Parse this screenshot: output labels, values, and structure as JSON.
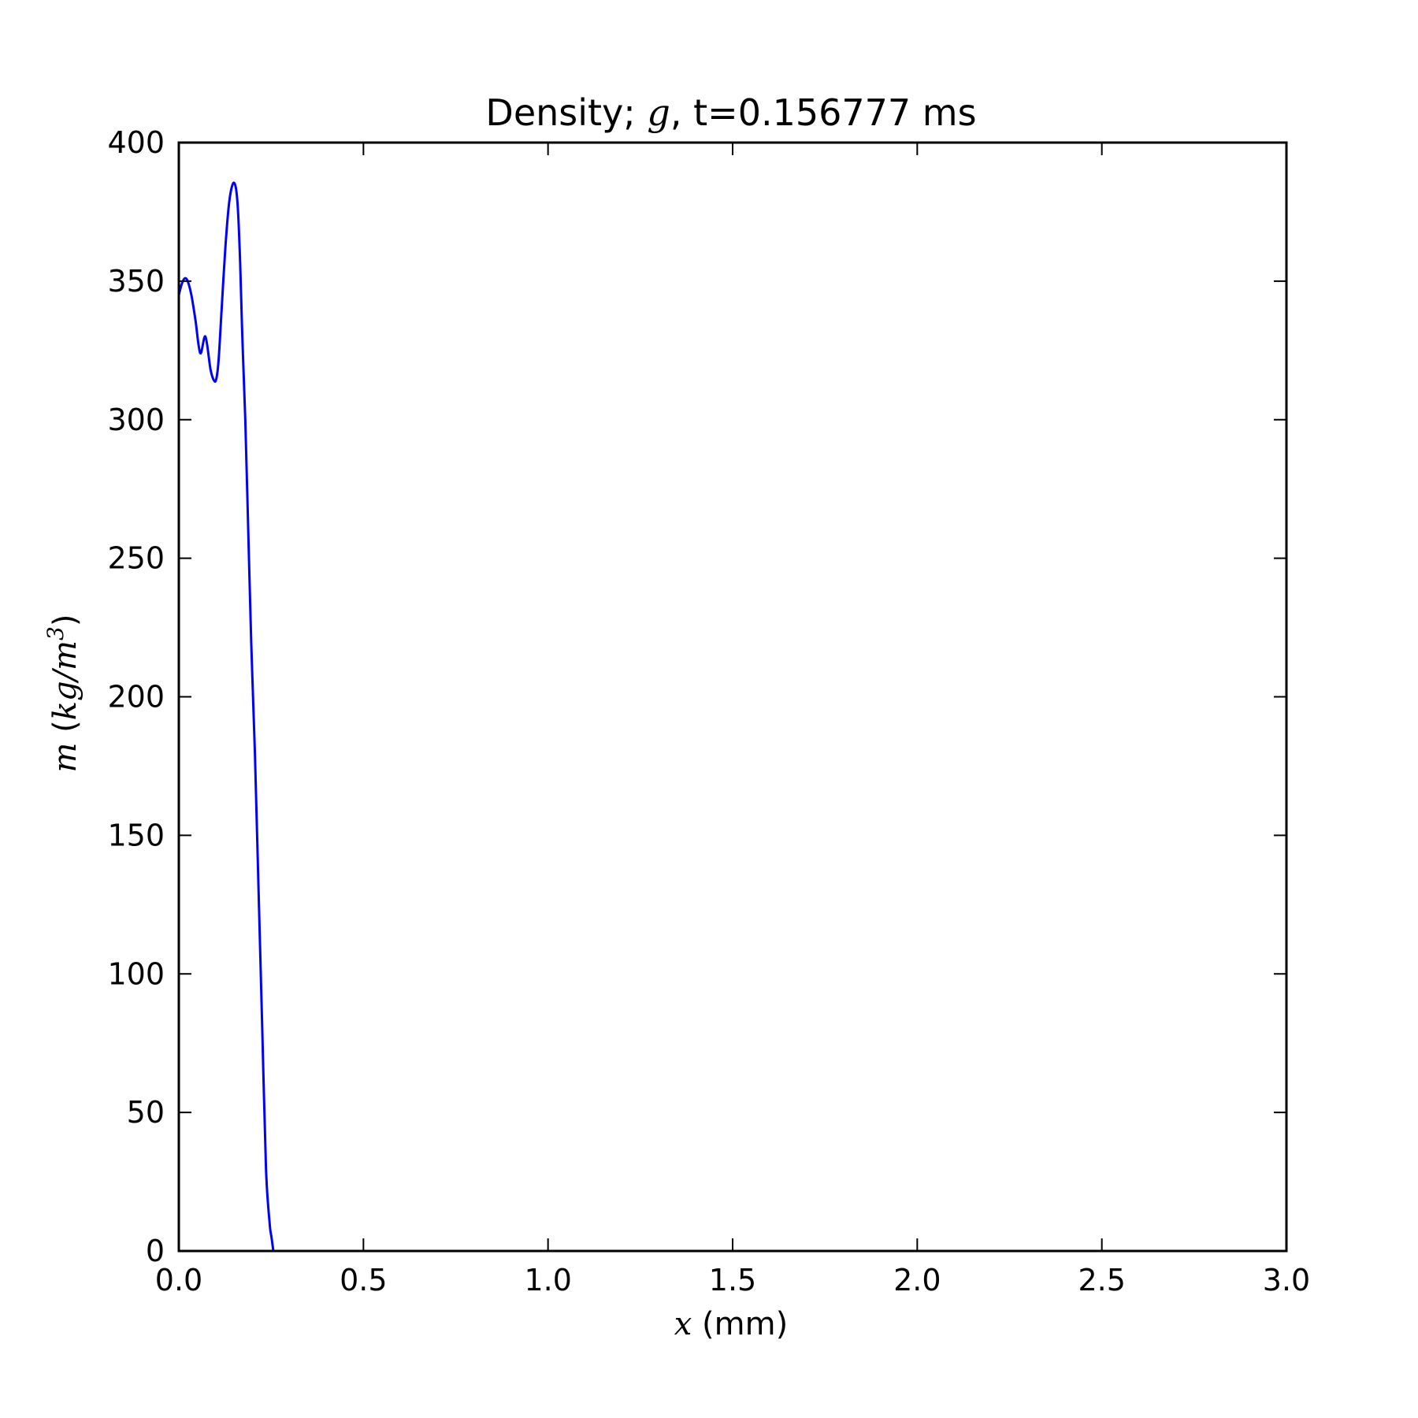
{
  "chart_data": {
    "type": "line",
    "title": {
      "prefix": "Density; ",
      "var": "g",
      "suffix": ", t=0.156777 ms"
    },
    "xlabel": {
      "var": "x",
      "unit": " (mm)"
    },
    "ylabel": {
      "var": "m",
      "open": " (",
      "unit_var": "kg/m",
      "exponent": "3",
      "close": ")"
    },
    "xlim": [
      0.0,
      3.0
    ],
    "ylim": [
      0,
      400
    ],
    "xticks": [
      0.0,
      0.5,
      1.0,
      1.5,
      2.0,
      2.5,
      3.0
    ],
    "xtick_labels": [
      "0.0",
      "0.5",
      "1.0",
      "1.5",
      "2.0",
      "2.5",
      "3.0"
    ],
    "yticks": [
      0,
      50,
      100,
      150,
      200,
      250,
      300,
      350,
      400
    ],
    "ytick_labels": [
      "0",
      "50",
      "100",
      "150",
      "200",
      "250",
      "300",
      "350",
      "400"
    ],
    "grid": false,
    "series": [
      {
        "color": "#0000ff",
        "x": [
          0.0,
          0.008,
          0.016,
          0.024,
          0.034,
          0.045,
          0.058,
          0.072,
          0.086,
          0.096,
          0.102,
          0.108,
          0.116,
          0.126,
          0.136,
          0.146,
          0.154,
          0.16,
          0.166,
          0.172,
          0.18,
          0.188,
          0.196,
          0.206,
          0.216,
          0.226,
          0.236,
          0.246,
          0.251,
          0.256
        ],
        "y": [
          345,
          349,
          351,
          350,
          345,
          336,
          324,
          330.0,
          318,
          314,
          315,
          322,
          340,
          362,
          378,
          385,
          384,
          376,
          357,
          330,
          300,
          260,
          220,
          180,
          130,
          80,
          30,
          10,
          5,
          0
        ]
      }
    ]
  }
}
